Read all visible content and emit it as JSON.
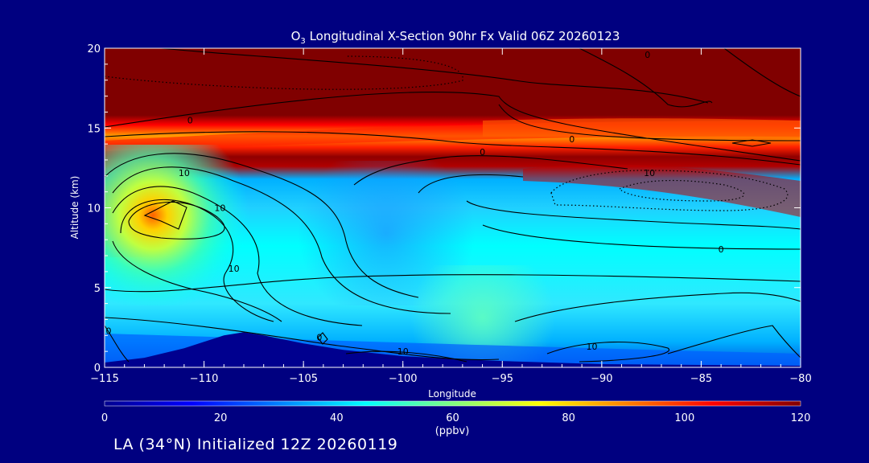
{
  "chart_data": {
    "type": "heatmap",
    "title_prefix": "O",
    "title_subscript": "3",
    "title_rest": " Longitudinal X-Section 90hr  Fx Valid 06Z 20260123",
    "xlabel": "Longitude",
    "ylabel": "Altitude (km)",
    "xlim": [
      -115,
      -80
    ],
    "ylim": [
      0,
      20
    ],
    "x_ticks": [
      -115,
      -110,
      -105,
      -100,
      -95,
      -90,
      -85,
      -80
    ],
    "x_tick_labels": [
      "−115",
      "−110",
      "−105",
      "−100",
      "−95",
      "−90",
      "−85",
      "−80"
    ],
    "y_ticks": [
      0,
      5,
      10,
      15,
      20
    ],
    "y_tick_labels": [
      "0",
      "5",
      "10",
      "15",
      "20"
    ],
    "colorbar": {
      "min": 0,
      "max": 120,
      "ticks": [
        0,
        20,
        40,
        60,
        80,
        100,
        120
      ],
      "tick_labels": [
        "0",
        "20",
        "40",
        "60",
        "80",
        "100",
        "120"
      ],
      "units": "(ppbv)",
      "colors": [
        "#00008f",
        "#0000ff",
        "#0080ff",
        "#00ffff",
        "#80ff80",
        "#ffff00",
        "#ff8000",
        "#ff0000",
        "#800000"
      ]
    },
    "field_summary": {
      "stratosphere_above_km": 13,
      "max_ppbv": 120,
      "troposphere_typical_ppbv": [
        35,
        50
      ],
      "enhanced_region": {
        "lon": -112,
        "alt_km": 9.5,
        "ppbv": 80
      },
      "boundary_layer_low_ppbv": 10
    },
    "terrain_profile": {
      "lon": [
        -115,
        -113,
        -111,
        -109,
        -108,
        -107,
        -105,
        -103,
        -100,
        -97,
        -95,
        -90,
        -85,
        -80
      ],
      "alt_km": [
        0.3,
        0.6,
        1.2,
        2.0,
        2.2,
        2.0,
        1.5,
        1.1,
        0.7,
        0.5,
        0.4,
        0.2,
        0.15,
        0.1
      ]
    },
    "contour_labels": [
      {
        "text": "0",
        "lon": -104.2,
        "alt_km": 1.7
      },
      {
        "text": "0",
        "lon": -110.7,
        "alt_km": 15.3
      },
      {
        "text": "0",
        "lon": -96.0,
        "alt_km": 13.3
      },
      {
        "text": "0",
        "lon": -91.5,
        "alt_km": 14.1
      },
      {
        "text": "0",
        "lon": -84.0,
        "alt_km": 7.2
      },
      {
        "text": "0",
        "lon": -87.7,
        "alt_km": 19.4
      },
      {
        "text": "0",
        "lon": -114.8,
        "alt_km": 2.1
      },
      {
        "text": "10",
        "lon": -111.0,
        "alt_km": 12.0
      },
      {
        "text": "10",
        "lon": -109.2,
        "alt_km": 9.8
      },
      {
        "text": "10",
        "lon": -108.5,
        "alt_km": 6.0
      },
      {
        "text": "10",
        "lon": -100.0,
        "alt_km": 0.8
      },
      {
        "text": "10",
        "lon": -90.5,
        "alt_km": 1.1
      },
      {
        "text": "10",
        "lon": -87.6,
        "alt_km": 12.0
      }
    ]
  },
  "footer": {
    "text": "LA (34°N) Initialized 12Z 20260119"
  }
}
